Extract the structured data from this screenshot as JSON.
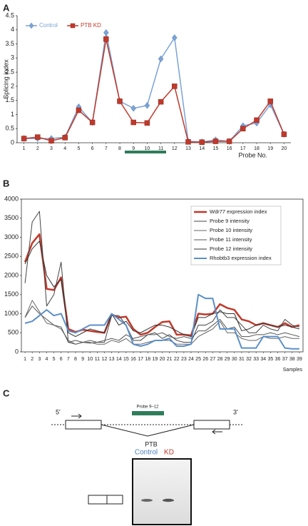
{
  "panel_labels": [
    "A",
    "B",
    "C"
  ],
  "chart_data": [
    {
      "type": "line",
      "y_label": "Splicing index",
      "x_label": "Probe No.",
      "categories": [
        "1",
        "2",
        "3",
        "4",
        "5",
        "6",
        "7",
        "8",
        "9",
        "10",
        "11",
        "12",
        "13",
        "14",
        "15",
        "16",
        "17",
        "18",
        "19",
        "20"
      ],
      "series": [
        {
          "name": "Control",
          "color": "#7ba3d6",
          "marker": "diamond",
          "values": [
            0.15,
            0.15,
            0.15,
            0.2,
            1.27,
            0.72,
            3.9,
            1.47,
            1.22,
            1.32,
            2.97,
            3.72,
            0.05,
            0.03,
            0.1,
            0.05,
            0.6,
            0.7,
            1.35,
            0.3
          ]
        },
        {
          "name": "PTB KD",
          "color": "#c0392b",
          "marker": "square",
          "values": [
            0.15,
            0.2,
            0.07,
            0.18,
            1.15,
            0.72,
            3.67,
            1.47,
            0.72,
            0.7,
            1.45,
            2.0,
            0.03,
            0.02,
            0.05,
            0.05,
            0.5,
            0.8,
            1.47,
            0.3
          ]
        }
      ],
      "ylim": [
        0,
        4.5
      ],
      "yticks": [
        0,
        0.5,
        1,
        1.5,
        2,
        2.5,
        3,
        3.5,
        4,
        4.5
      ],
      "legend": "top-left",
      "grid": false
    },
    {
      "type": "line",
      "x_label": "Samples",
      "categories": [
        "1",
        "2",
        "3",
        "4",
        "5",
        "6",
        "7",
        "8",
        "9",
        "10",
        "11",
        "12",
        "13",
        "14",
        "15",
        "16",
        "17",
        "18",
        "19",
        "20",
        "21",
        "22",
        "23",
        "24",
        "25",
        "26",
        "27",
        "28",
        "29",
        "30",
        "31",
        "32",
        "33",
        "34",
        "35",
        "36",
        "37",
        "38",
        "39"
      ],
      "series": [
        {
          "name": "Wdr77 expression index",
          "color": "#c0392b",
          "width": 2.5,
          "values": [
            2350,
            2850,
            3080,
            1650,
            1620,
            1950,
            600,
            520,
            580,
            550,
            520,
            500,
            980,
            900,
            920,
            600,
            450,
            500,
            650,
            780,
            800,
            450,
            450,
            430,
            1000,
            980,
            1000,
            1250,
            1150,
            1100,
            850,
            800,
            700,
            750,
            700,
            650,
            750,
            650,
            700
          ]
        },
        {
          "name": "Probe 9 intensity",
          "color": "#444444",
          "width": 1,
          "values": [
            1800,
            3400,
            3680,
            1200,
            1500,
            2350,
            250,
            300,
            250,
            230,
            250,
            250,
            950,
            950,
            700,
            300,
            300,
            450,
            500,
            350,
            450,
            300,
            250,
            250,
            700,
            700,
            800,
            1100,
            900,
            900,
            700,
            500,
            500,
            700,
            600,
            550,
            850,
            700,
            650
          ]
        },
        {
          "name": "Probe 10 intensity",
          "color": "#666666",
          "width": 1,
          "values": [
            900,
            1350,
            1050,
            750,
            700,
            600,
            300,
            200,
            250,
            250,
            200,
            200,
            300,
            250,
            350,
            200,
            200,
            250,
            300,
            300,
            300,
            200,
            200,
            200,
            400,
            500,
            600,
            800,
            500,
            500,
            350,
            300,
            300,
            400,
            350,
            350,
            400,
            350,
            350
          ]
        },
        {
          "name": "Probe 11 intensity",
          "color": "#555555",
          "width": 1,
          "values": [
            900,
            1200,
            1000,
            850,
            700,
            650,
            250,
            200,
            250,
            300,
            250,
            300,
            350,
            300,
            450,
            350,
            400,
            450,
            450,
            500,
            400,
            350,
            400,
            350,
            550,
            550,
            700,
            850,
            600,
            650,
            400,
            400,
            450,
            450,
            500,
            450,
            500,
            450,
            400
          ]
        },
        {
          "name": "Probe 12 intensity",
          "color": "#333333",
          "width": 1,
          "values": [
            2300,
            2700,
            2900,
            2000,
            1700,
            1900,
            500,
            400,
            500,
            600,
            550,
            500,
            1000,
            700,
            800,
            550,
            500,
            600,
            700,
            700,
            650,
            550,
            450,
            400,
            900,
            900,
            1000,
            1050,
            1000,
            1000,
            550,
            600,
            700,
            750,
            700,
            650,
            700,
            650,
            600
          ]
        },
        {
          "name": "Rhobtb3 expression index",
          "color": "#5b8fc9",
          "width": 2,
          "values": [
            750,
            800,
            950,
            1100,
            950,
            1000,
            550,
            500,
            600,
            700,
            700,
            700,
            1000,
            850,
            700,
            200,
            150,
            200,
            300,
            300,
            350,
            150,
            150,
            200,
            1500,
            1400,
            1400,
            600,
            600,
            600,
            100,
            100,
            100,
            400,
            400,
            400,
            100,
            80,
            80
          ]
        }
      ],
      "ylim": [
        0,
        4000
      ],
      "yticks": [
        0,
        500,
        1000,
        1500,
        2000,
        2500,
        3000,
        3500,
        4000
      ],
      "legend": "top-right",
      "grid": false
    }
  ],
  "panel_c": {
    "five_prime": "5'",
    "three_prime": "3'",
    "probe_label": "Probe 9–12",
    "protein": "PTB",
    "lanes": [
      {
        "label": "Control",
        "color": "#4a7fc1"
      },
      {
        "label": "KD",
        "color": "#c0392b"
      }
    ]
  }
}
